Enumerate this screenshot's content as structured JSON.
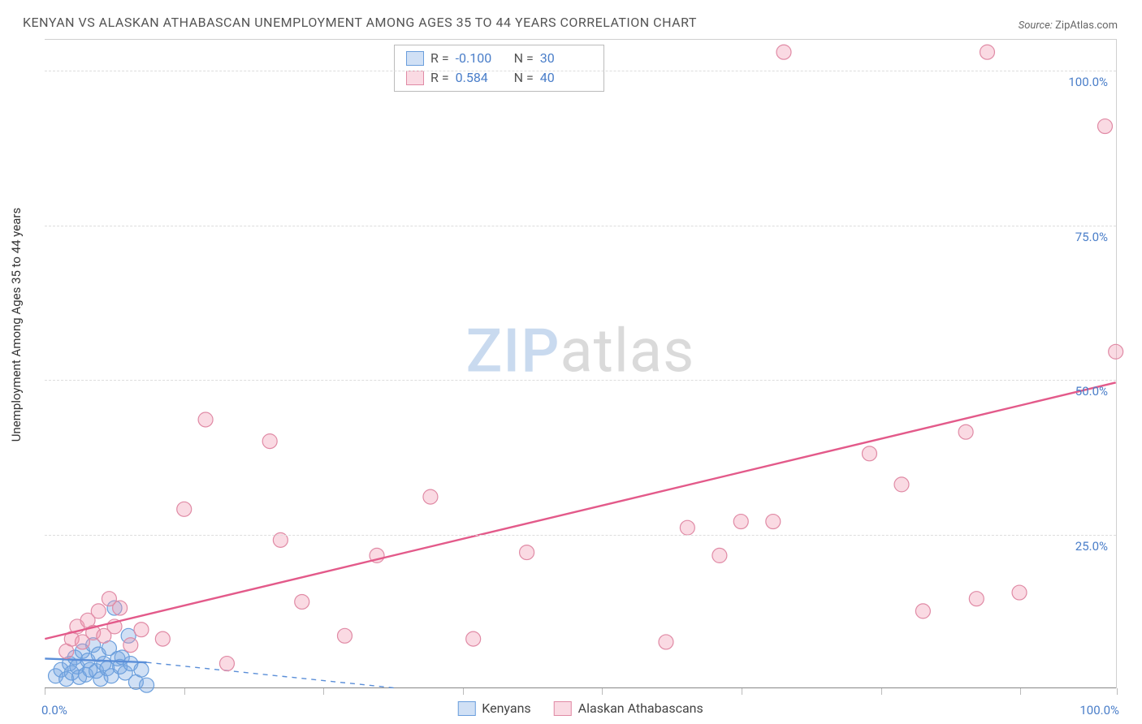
{
  "title": "KENYAN VS ALASKAN ATHABASCAN UNEMPLOYMENT AMONG AGES 35 TO 44 YEARS CORRELATION CHART",
  "source_prefix": "Source: ",
  "source_name": "ZipAtlas.com",
  "ylabel": "Unemployment Among Ages 35 to 44 years",
  "watermark_a": "ZIP",
  "watermark_b": "atlas",
  "chart": {
    "type": "scatter",
    "xlim": [
      0,
      100
    ],
    "ylim": [
      0,
      105
    ],
    "ytick_values": [
      25,
      50,
      75,
      100
    ],
    "ytick_labels": [
      "25.0%",
      "50.0%",
      "75.0%",
      "100.0%"
    ],
    "xtick_positions": [
      0,
      13,
      26,
      39,
      52,
      65,
      78,
      91,
      100
    ],
    "x_origin_label": "0.0%",
    "x_max_label": "100.0%",
    "grid_color": "#dddddd",
    "axis_color": "#888888",
    "tick_label_color": "#4a7ec9",
    "background_color": "#ffffff",
    "marker_radius": 9,
    "marker_stroke_width": 1.2,
    "trend_line_width": 2.4,
    "series": [
      {
        "name": "Kenyans",
        "fill": "rgba(120,165,225,0.35)",
        "stroke": "#6a9edc",
        "line_color": "#5a8ed8",
        "R": "-0.100",
        "N": "30",
        "trend": {
          "x1": 0,
          "y1": 4.8,
          "x2": 9.5,
          "y2": 4.2,
          "dash_x2": 33,
          "dash_y2": 0
        },
        "points": [
          [
            1.0,
            2.0
          ],
          [
            1.5,
            3.0
          ],
          [
            2.0,
            1.5
          ],
          [
            2.3,
            4.0
          ],
          [
            2.5,
            2.5
          ],
          [
            2.8,
            5.0
          ],
          [
            3.0,
            3.5
          ],
          [
            3.2,
            1.8
          ],
          [
            3.5,
            6.0
          ],
          [
            3.8,
            2.2
          ],
          [
            4.0,
            4.5
          ],
          [
            4.2,
            3.0
          ],
          [
            4.5,
            7.0
          ],
          [
            4.8,
            2.8
          ],
          [
            5.0,
            5.5
          ],
          [
            5.2,
            1.5
          ],
          [
            5.5,
            4.0
          ],
          [
            5.8,
            3.2
          ],
          [
            6.0,
            6.5
          ],
          [
            6.2,
            2.0
          ],
          [
            6.5,
            13.0
          ],
          [
            6.8,
            4.8
          ],
          [
            7.0,
            3.5
          ],
          [
            7.2,
            5.0
          ],
          [
            7.5,
            2.5
          ],
          [
            7.8,
            8.5
          ],
          [
            8.0,
            4.0
          ],
          [
            8.5,
            1.0
          ],
          [
            9.0,
            3.0
          ],
          [
            9.5,
            0.5
          ]
        ]
      },
      {
        "name": "Alaskan Athabascans",
        "fill": "rgba(240,150,175,0.35)",
        "stroke": "#e08aa5",
        "line_color": "#e35a8a",
        "R": "0.584",
        "N": "40",
        "trend": {
          "x1": 0,
          "y1": 8.0,
          "x2": 100,
          "y2": 49.5
        },
        "points": [
          [
            2.0,
            6.0
          ],
          [
            2.5,
            8.0
          ],
          [
            3.0,
            10.0
          ],
          [
            3.5,
            7.5
          ],
          [
            4.0,
            11.0
          ],
          [
            4.5,
            9.0
          ],
          [
            5.0,
            12.5
          ],
          [
            5.5,
            8.5
          ],
          [
            6.0,
            14.5
          ],
          [
            6.5,
            10.0
          ],
          [
            7.0,
            13.0
          ],
          [
            8.0,
            7.0
          ],
          [
            9.0,
            9.5
          ],
          [
            11.0,
            8.0
          ],
          [
            13.0,
            29.0
          ],
          [
            15.0,
            43.5
          ],
          [
            17.0,
            4.0
          ],
          [
            21.0,
            40.0
          ],
          [
            22.0,
            24.0
          ],
          [
            24.0,
            14.0
          ],
          [
            28.0,
            8.5
          ],
          [
            31.0,
            21.5
          ],
          [
            36.0,
            31.0
          ],
          [
            40.0,
            8.0
          ],
          [
            45.0,
            22.0
          ],
          [
            58.0,
            7.5
          ],
          [
            60.0,
            26.0
          ],
          [
            63.0,
            21.5
          ],
          [
            65.0,
            27.0
          ],
          [
            68.0,
            27.0
          ],
          [
            69.0,
            103.0
          ],
          [
            77.0,
            38.0
          ],
          [
            80.0,
            33.0
          ],
          [
            82.0,
            12.5
          ],
          [
            86.0,
            41.5
          ],
          [
            87.0,
            14.5
          ],
          [
            88.0,
            103.0
          ],
          [
            91.0,
            15.5
          ],
          [
            99.0,
            91.0
          ],
          [
            100.0,
            54.5
          ]
        ]
      }
    ]
  },
  "stats_labels": {
    "R": "R =",
    "N": "N ="
  },
  "legend": {
    "kenyans": "Kenyans",
    "athabascans": "Alaskan Athabascans"
  }
}
